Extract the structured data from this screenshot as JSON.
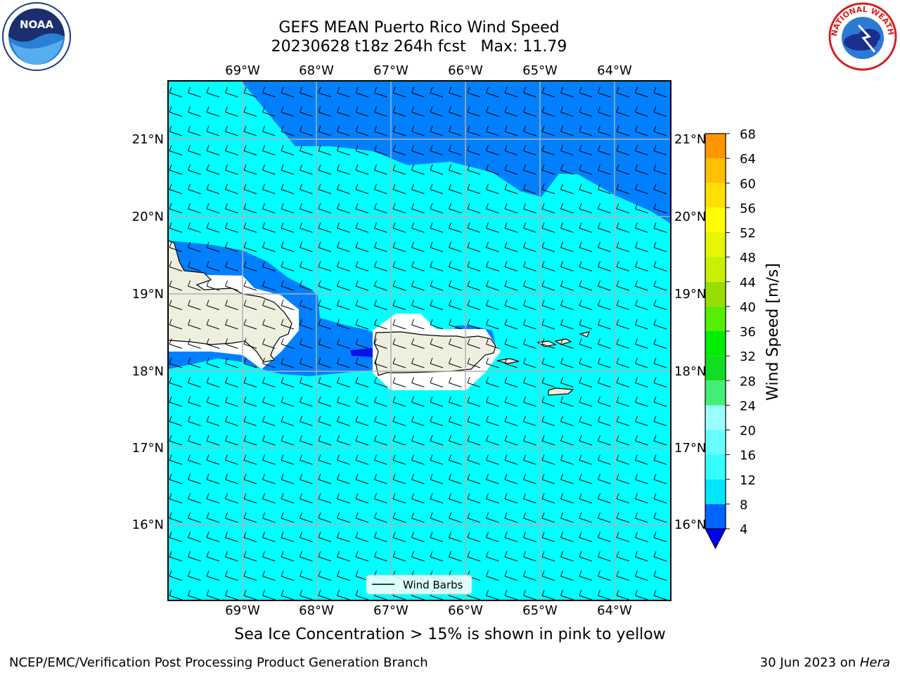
{
  "title": {
    "line1": "GEFS MEAN Puerto Rico Wind Speed",
    "line2": "20230628 t18z 264h fcst   Max: 11.79"
  },
  "lon_labels": [
    "69°W",
    "68°W",
    "67°W",
    "66°W",
    "65°W",
    "64°W"
  ],
  "lat_labels": [
    "21°N",
    "20°N",
    "19°N",
    "18°N",
    "17°N",
    "16°N"
  ],
  "legend": {
    "label": "Wind Barbs"
  },
  "colorbar": {
    "title": "Wind Speed [m/s]",
    "ticks": [
      "4",
      "8",
      "12",
      "16",
      "20",
      "24",
      "28",
      "32",
      "36",
      "40",
      "44",
      "48",
      "52",
      "56",
      "60",
      "64",
      "68"
    ],
    "colors": [
      "#0064ff",
      "#00e6ff",
      "#33ffff",
      "#66ffff",
      "#99ffff",
      "#44ee77",
      "#11dd22",
      "#00ee00",
      "#55ee00",
      "#99dd00",
      "#c8f000",
      "#e6f500",
      "#ffff00",
      "#ffe000",
      "#ffc000",
      "#ff9600",
      "#ff6400",
      "#ff3c00",
      "#ff0000"
    ],
    "underflow_color": "#0000ee"
  },
  "map_colors": {
    "ocean": "#00ffff",
    "band_4_8": "#0080ff",
    "band_lt_4": "#0a10e8",
    "land": "#efefdf",
    "gridline": "#b0b0b0"
  },
  "footnote": "Sea Ice Concentration > 15% is shown in pink to yellow",
  "branch": "NCEP/EMC/Verification Post Processing Product Generation Branch",
  "date": "30 Jun 2023 on ",
  "machine": "Hera",
  "logos": {
    "left": "noaa-logo",
    "right": "nws-logo",
    "noaa_text": "NOAA",
    "nws_text": "NATIONAL WEATHER SERVICE"
  }
}
